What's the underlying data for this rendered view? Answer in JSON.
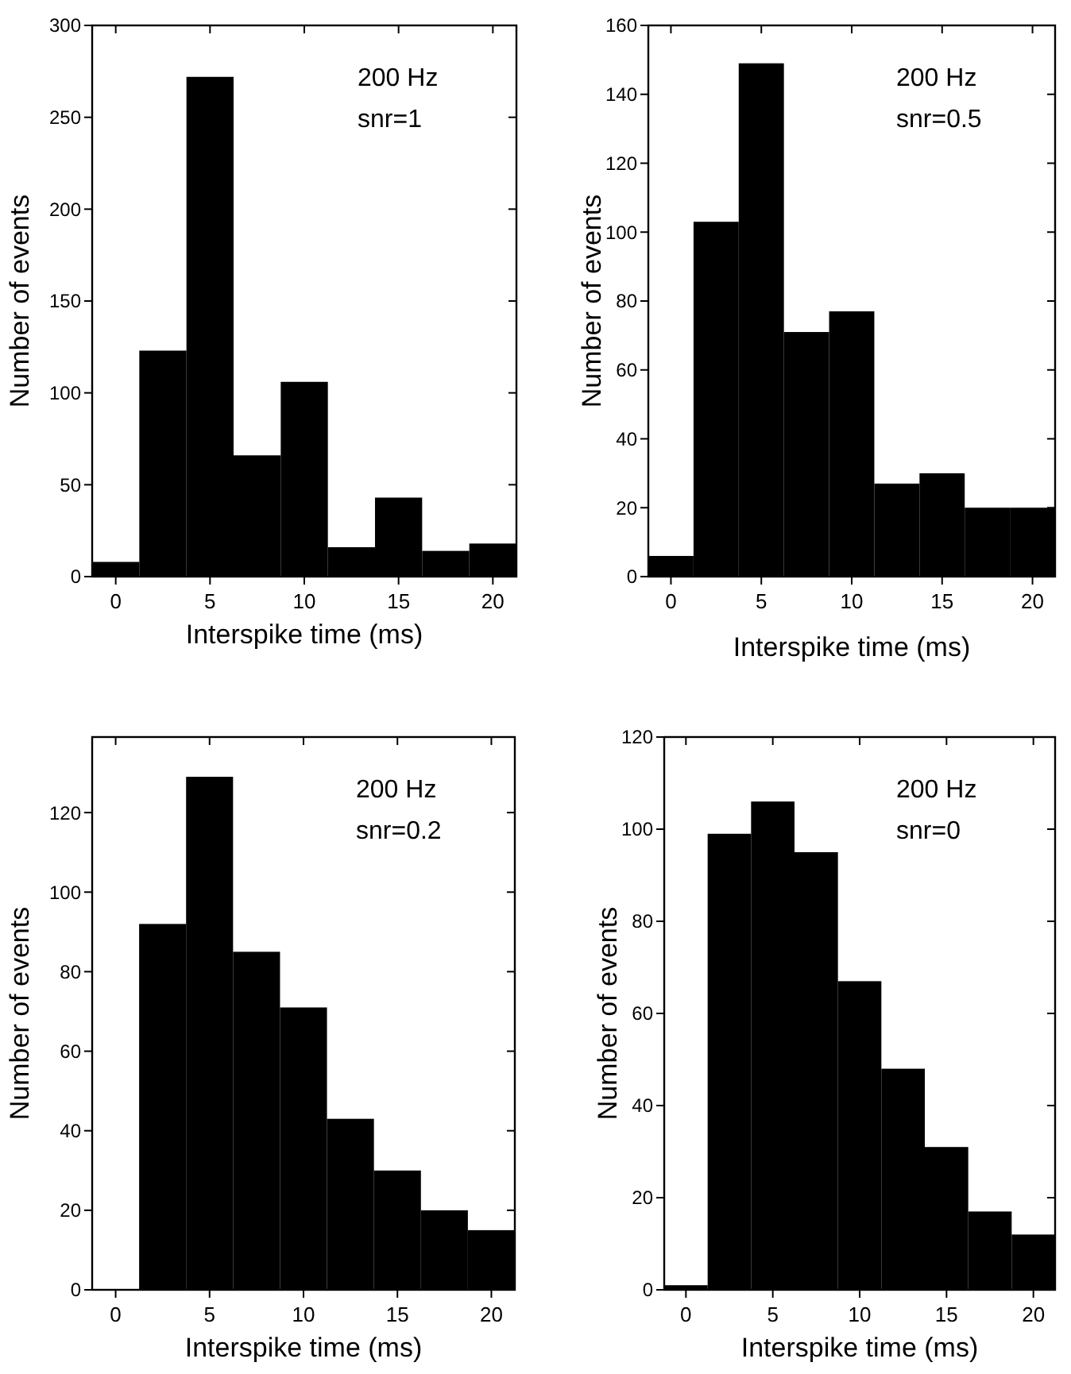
{
  "chart_data": [
    {
      "type": "histogram",
      "xlabel": "Interspike time (ms)",
      "ylabel": "Number of events",
      "annotations": [
        "200 Hz",
        "snr=1"
      ],
      "bins": [
        -1.25,
        1.25,
        3.75,
        6.25,
        8.75,
        11.25,
        13.75,
        16.25,
        18.75,
        21.25
      ],
      "values": [
        8,
        123,
        272,
        66,
        106,
        16,
        43,
        14,
        18
      ],
      "color": "#000000",
      "xlim": [
        -1.25,
        21.25
      ],
      "xticks": [
        0,
        5,
        10,
        15,
        20
      ],
      "ylim": [
        0,
        300
      ],
      "yticks": [
        0,
        50,
        100,
        150,
        200,
        250,
        300
      ],
      "grid": false
    },
    {
      "type": "histogram",
      "xlabel": "Interspike time (ms)",
      "ylabel": "Number of events",
      "annotations": [
        "200 Hz",
        "snr=0.5"
      ],
      "bins": [
        -1.25,
        1.25,
        3.75,
        6.25,
        8.75,
        11.25,
        13.75,
        16.25,
        18.75,
        21.25
      ],
      "values": [
        6,
        103,
        149,
        71,
        77,
        27,
        30,
        20,
        20
      ],
      "color": "#000000",
      "xlim": [
        -1.25,
        21.25
      ],
      "xticks": [
        0,
        5,
        10,
        15,
        20
      ],
      "ylim": [
        0,
        160
      ],
      "yticks": [
        0,
        20,
        40,
        60,
        80,
        100,
        120,
        140,
        160
      ],
      "grid": false
    },
    {
      "type": "histogram",
      "xlabel": "Interspike time (ms)",
      "ylabel": "Number of events",
      "annotations": [
        "200 Hz",
        "snr=0.2"
      ],
      "bins": [
        -1.25,
        1.25,
        3.75,
        6.25,
        8.75,
        11.25,
        13.75,
        16.25,
        18.75,
        21.25
      ],
      "values": [
        0,
        92,
        129,
        85,
        71,
        43,
        30,
        20,
        15
      ],
      "color": "#000000",
      "xlim": [
        -1.25,
        21.25
      ],
      "xticks": [
        0,
        5,
        10,
        15,
        20
      ],
      "ylim": [
        0,
        139
      ],
      "yticks": [
        0,
        20,
        40,
        60,
        80,
        100,
        120
      ],
      "grid": false
    },
    {
      "type": "histogram",
      "xlabel": "Interspike time (ms)",
      "ylabel": "Number of events",
      "annotations": [
        "200 Hz",
        "snr=0"
      ],
      "bins": [
        -1.25,
        1.25,
        3.75,
        6.25,
        8.75,
        11.25,
        13.75,
        16.25,
        18.75,
        21.25
      ],
      "values": [
        1,
        99,
        106,
        95,
        67,
        48,
        31,
        17,
        12
      ],
      "color": "#000000",
      "xlim": [
        -1.25,
        21.25
      ],
      "xticks": [
        0,
        5,
        10,
        15,
        20
      ],
      "ylim": [
        0,
        120
      ],
      "yticks": [
        0,
        20,
        40,
        60,
        80,
        100,
        120
      ],
      "grid": false
    }
  ]
}
